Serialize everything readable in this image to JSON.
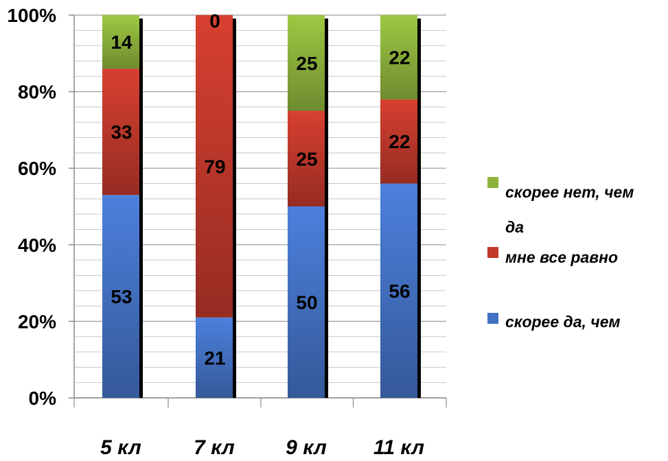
{
  "chart_data": {
    "type": "bar",
    "stacked": "percent",
    "categories": [
      "5 кл",
      "7 кл",
      "9 кл",
      "11 кл"
    ],
    "ylim": [
      0,
      100
    ],
    "yticks": [
      "0%",
      "20%",
      "40%",
      "60%",
      "80%",
      "100%"
    ],
    "grid": "horizontal",
    "legend_position": "right",
    "series": [
      {
        "name": "скорее да, чем",
        "color": "#4472C4",
        "values": [
          53,
          21,
          50,
          56
        ]
      },
      {
        "name": "мне все равно",
        "color": "#C0392B",
        "values": [
          33,
          79,
          25,
          22
        ]
      },
      {
        "name": "скорее нет, чем да",
        "color": "#8DB33C",
        "values": [
          14,
          0,
          25,
          22
        ]
      }
    ],
    "data_labels": [
      [
        "53",
        "21",
        "50",
        "56"
      ],
      [
        "33",
        "79",
        "25",
        "22"
      ],
      [
        "14",
        "0",
        "25",
        "22"
      ]
    ],
    "legend": [
      {
        "lines": [
          "скорее нет, чем",
          "да"
        ],
        "color": "#8DB33C"
      },
      {
        "lines": [
          "мне все равно"
        ],
        "color": "#C0392B"
      },
      {
        "lines": [
          "скорее да, чем"
        ],
        "color": "#4472C4"
      }
    ]
  }
}
